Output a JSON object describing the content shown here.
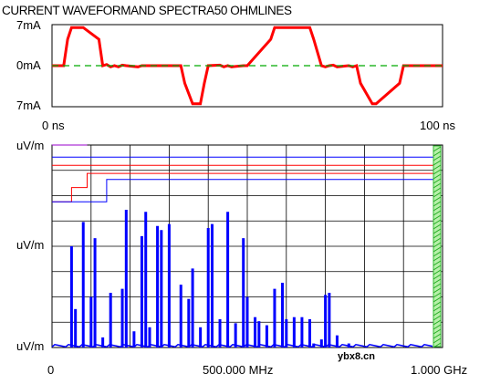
{
  "title": "CURRENT WAVEFORMAND SPECTRA50 OHMLINES",
  "watermark": "ybx8.cn",
  "chart_data": [
    {
      "type": "line",
      "title": "CURRENT WAVEFORMAND SPECTRA50 OHMLINES",
      "y_ticks": [
        "7mA",
        "0mA",
        "7mA"
      ],
      "x_ticks": [
        "0 ns",
        "100 ns"
      ],
      "xlim": [
        0,
        100
      ],
      "ylim": [
        -7,
        7
      ],
      "grid": false,
      "series": [
        {
          "color": "#ff0000",
          "x": [
            0,
            2,
            3,
            4,
            5,
            6,
            8,
            12,
            13,
            14,
            15,
            16,
            17,
            18,
            19,
            22,
            23,
            33,
            34,
            36,
            37,
            38,
            39,
            40,
            43,
            44,
            45,
            46,
            49,
            50,
            56,
            57,
            66,
            67,
            69,
            70,
            71,
            72,
            73,
            76,
            77,
            78,
            79,
            82,
            83,
            89,
            90,
            99,
            100
          ],
          "y": [
            0,
            0,
            0,
            4.5,
            6.5,
            6.5,
            6.5,
            4.5,
            0,
            0.2,
            -0.2,
            0,
            -0.2,
            0.1,
            0,
            -0.2,
            0,
            0,
            -3,
            -6.5,
            -6.5,
            -6.5,
            -3,
            0,
            0.1,
            -0.2,
            0,
            -0.2,
            0,
            0,
            4.5,
            6.5,
            6.5,
            4.5,
            0,
            -0.2,
            0,
            0.1,
            -0.2,
            0,
            -0.2,
            0,
            -3,
            -6.5,
            -6.5,
            -3,
            0,
            0,
            0
          ]
        },
        {
          "color": "#00aa00",
          "x": [
            0,
            100
          ],
          "y": [
            0,
            0
          ]
        }
      ]
    },
    {
      "type": "bar",
      "y_ticks": [
        "uV/m",
        "uV/m",
        "uV/m",
        "uV/m"
      ],
      "x_ticks": [
        "0",
        "500.000 MHz",
        "1.000 GHz"
      ],
      "xlim": [
        0,
        1000
      ],
      "ylim": [
        0,
        1
      ],
      "grid": true,
      "x": [
        50,
        60,
        80,
        100,
        110,
        130,
        150,
        180,
        190,
        210,
        230,
        240,
        250,
        270,
        280,
        300,
        330,
        350,
        360,
        380,
        400,
        410,
        430,
        450,
        470,
        490,
        500,
        520,
        530,
        550,
        570,
        590,
        600,
        620,
        640,
        660,
        670,
        690,
        700,
        710,
        730,
        760
      ],
      "values": [
        0.5,
        0.19,
        0.62,
        0.25,
        0.54,
        0.05,
        0.27,
        0.29,
        0.68,
        0.08,
        0.55,
        0.67,
        0.1,
        0.6,
        0.58,
        0.61,
        0.31,
        0.24,
        0.39,
        0.1,
        0.59,
        0.61,
        0.14,
        0.67,
        0.12,
        0.54,
        0.25,
        0.15,
        0.13,
        0.11,
        0.29,
        0.32,
        0.14,
        0.15,
        0.15,
        0.14,
        0.02,
        0.04,
        0.26,
        0.27,
        0.06,
        0.02
      ],
      "limit_lines": [
        {
          "color": "#ff0000",
          "points": [
            [
              0,
              0.72
            ],
            [
              50,
              0.72
            ],
            [
              50,
              0.79
            ],
            [
              90,
              0.79
            ],
            [
              90,
              0.86
            ],
            [
              990,
              0.86
            ]
          ]
        },
        {
          "color": "#9900cc",
          "points": [
            [
              0,
              1.0
            ],
            [
              90,
              1.0
            ]
          ]
        },
        {
          "color": "#0000ff",
          "points": [
            [
              0,
              0.72
            ],
            [
              140,
              0.72
            ],
            [
              140,
              0.83
            ],
            [
              990,
              0.83
            ]
          ]
        },
        {
          "color": "#ff0000",
          "points": [
            [
              0,
              0.9
            ],
            [
              990,
              0.9
            ]
          ]
        },
        {
          "color": "#0000ff",
          "points": [
            [
              0,
              0.94
            ],
            [
              990,
              0.94
            ]
          ]
        }
      ]
    }
  ]
}
